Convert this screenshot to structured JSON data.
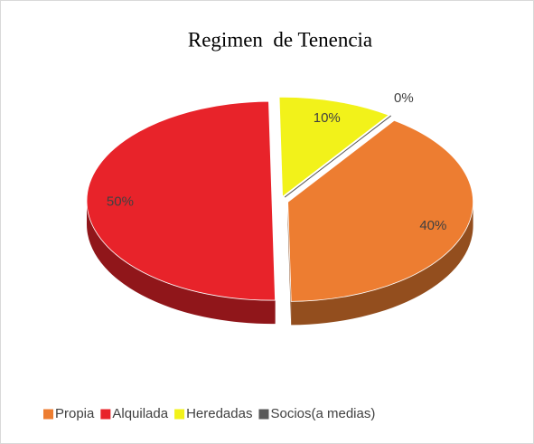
{
  "chart_data": {
    "type": "pie3d",
    "title": "Regimen  de Tenencia",
    "categories": [
      "Propia",
      "Alquilada",
      "Heredadas",
      "Socios(a medias)"
    ],
    "values": [
      40,
      50,
      10,
      0
    ],
    "value_labels": [
      "40%",
      "50%",
      "10%",
      "0%"
    ],
    "colors": [
      "#ED7D31",
      "#E8232A",
      "#F2F21A",
      "#595959"
    ],
    "legend": "bottom"
  }
}
